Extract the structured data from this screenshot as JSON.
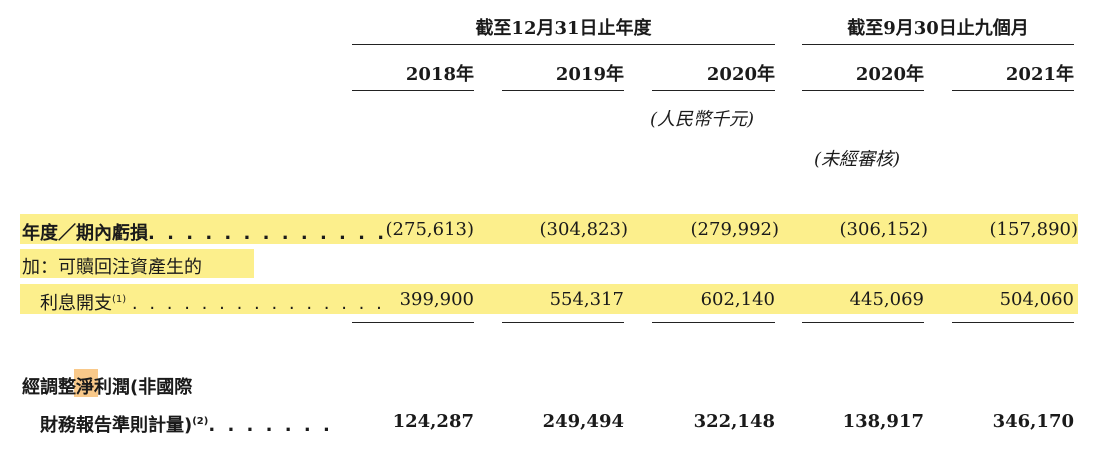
{
  "headers": {
    "group1": "截至12月31日止年度",
    "group2": "截至9月30日止九個月",
    "years": [
      "2018年",
      "2019年",
      "2020年",
      "2020年",
      "2021年"
    ],
    "unit": "(人民幣千元)",
    "unaudited": "(未經審核)"
  },
  "rows": {
    "loss": {
      "label": "年度／期內虧損",
      "dots": ". . . . . . . . . . . . .",
      "values": [
        "(275,613)",
        "(304,823)",
        "(279,992)",
        "(306,152)",
        "(157,890)"
      ]
    },
    "add": {
      "label": "加：可贖回注資產生的"
    },
    "interest": {
      "label": "利息開支",
      "note": "(1)",
      "dots": ". . . . . . . . . . . . . . .",
      "values": [
        "399,900",
        "554,317",
        "602,140",
        "445,069",
        "504,060"
      ]
    },
    "adjusted_line1": {
      "label_a": "經調整",
      "label_b": "淨",
      "label_c": "利潤(非國際"
    },
    "adjusted_line2": {
      "label": "財務報告準則計量)",
      "note": "(2)",
      "dots": ". . . . . . .",
      "values": [
        "124,287",
        "249,494",
        "322,148",
        "138,917",
        "346,170"
      ]
    }
  },
  "colors": {
    "highlight": "#fcef8c",
    "highlight_orange": "#f9c98a"
  }
}
